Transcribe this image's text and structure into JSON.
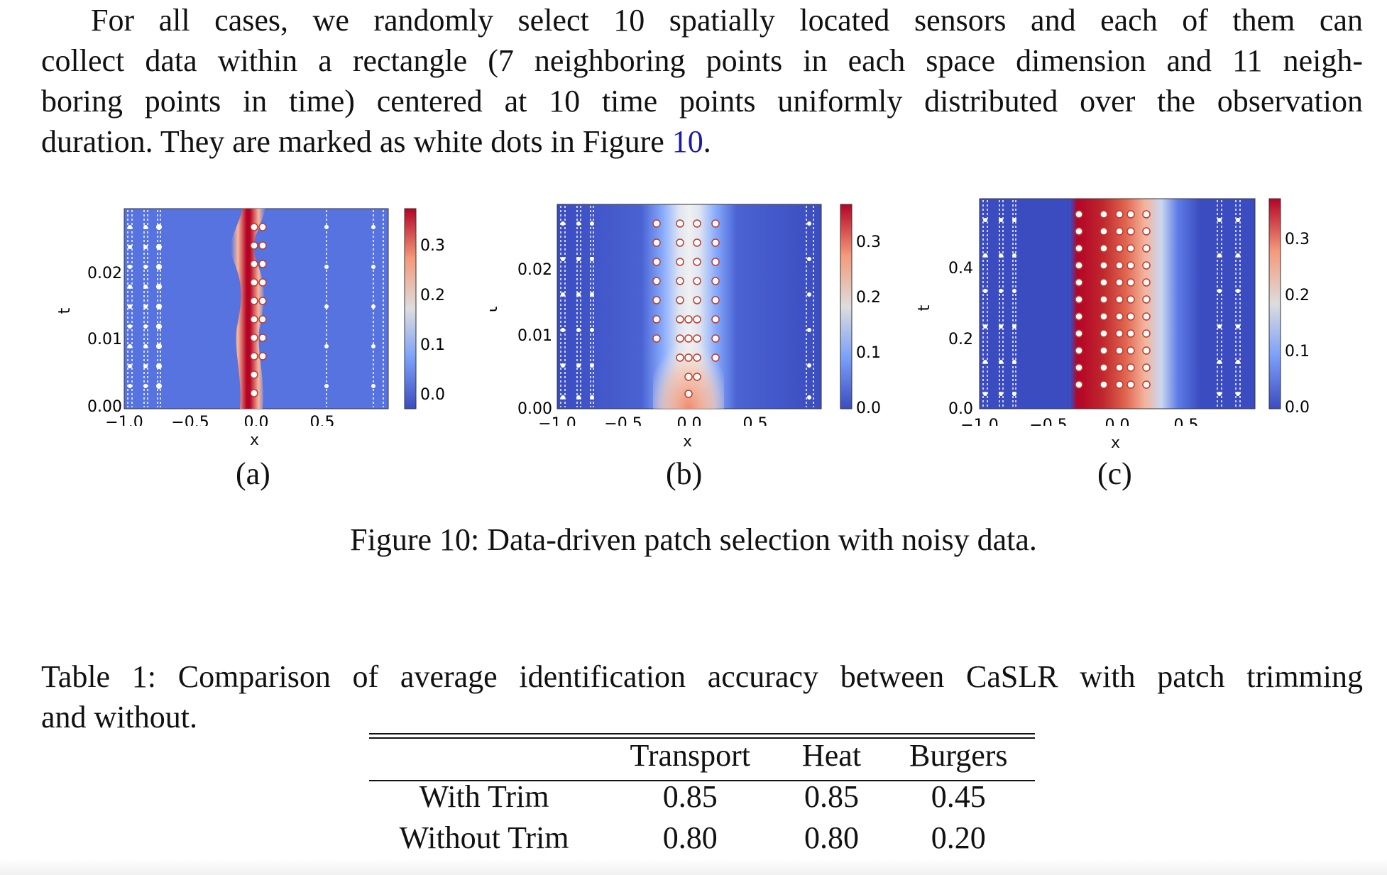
{
  "paragraph": {
    "line1": "For all cases, we randomly select 10 spatially located sensors and each of them can",
    "line2": "collect data within a rectangle (7 neighboring points in each space dimension and 11 neigh-",
    "line3": "boring points in time) centered at 10 time points uniformly distributed over the observation",
    "line4_prefix": "duration. They are marked as white dots in Figure ",
    "line4_ref": "10",
    "line4_suffix": "."
  },
  "figure": {
    "caption": "Figure 10: Data-driven patch selection with noisy data.",
    "panels": [
      {
        "label": "(a)",
        "xlabel": "x",
        "ylabel": "t",
        "x_ticks": [
          "−1.0",
          "−0.5",
          "0.0",
          "0.5"
        ],
        "y_ticks": [
          "0.00",
          "0.01",
          "0.02"
        ],
        "colorbar_ticks": [
          "0.0",
          "0.1",
          "0.2",
          "0.3"
        ]
      },
      {
        "label": "(b)",
        "xlabel": "x",
        "ylabel": "t",
        "x_ticks": [
          "−1.0",
          "−0.5",
          "0.0",
          "0.5"
        ],
        "y_ticks": [
          "0.00",
          "0.01",
          "0.02"
        ],
        "colorbar_ticks": [
          "0.0",
          "0.1",
          "0.2",
          "0.3"
        ]
      },
      {
        "label": "(c)",
        "xlabel": "x",
        "ylabel": "t",
        "x_ticks": [
          "−1.0",
          "−0.5",
          "0.0",
          "0.5"
        ],
        "y_ticks": [
          "0.0",
          "0.2",
          "0.4"
        ],
        "colorbar_ticks": [
          "0.0",
          "0.1",
          "0.2",
          "0.3"
        ]
      }
    ],
    "colors": {
      "low": "#3b4cc0",
      "mid": "#dddddd",
      "high": "#b40426"
    }
  },
  "table": {
    "caption_line1": "Table 1: Comparison of average identification accuracy between CaSLR with patch trimming",
    "caption_line2": "and without.",
    "headers": [
      "",
      "Transport",
      "Heat",
      "Burgers"
    ],
    "rows": [
      [
        "With Trim",
        "0.85",
        "0.85",
        "0.45"
      ],
      [
        "Without Trim",
        "0.80",
        "0.80",
        "0.20"
      ]
    ]
  }
}
